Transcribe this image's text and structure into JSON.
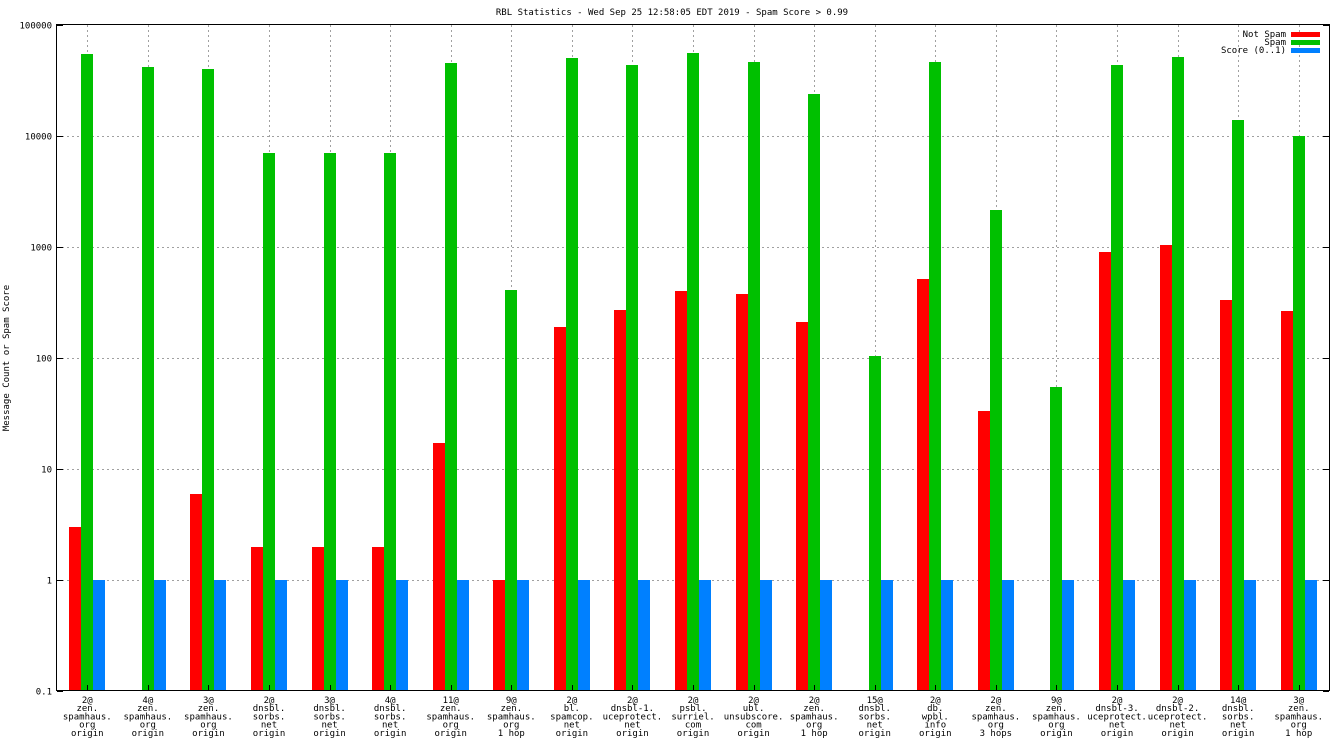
{
  "chart_data": {
    "type": "bar",
    "title": "RBL Statistics - Wed Sep 25 12:58:05 EDT 2019 - Spam Score > 0.99",
    "xlabel": "",
    "ylabel": "Message Count or Spam Score",
    "yscale": "log",
    "ylim": [
      0.1,
      100000
    ],
    "yticks": [
      {
        "value": 0.1,
        "label": "0.1"
      },
      {
        "value": 1,
        "label": "1"
      },
      {
        "value": 10,
        "label": "10"
      },
      {
        "value": 100,
        "label": "100"
      },
      {
        "value": 1000,
        "label": "1000"
      },
      {
        "value": 10000,
        "label": "10000"
      },
      {
        "value": 100000,
        "label": "100000"
      }
    ],
    "grid": true,
    "legend_position": "top-right",
    "categories": [
      [
        "2@",
        "zen.",
        "spamhaus.",
        "org",
        "origin"
      ],
      [
        "4@",
        "zen.",
        "spamhaus.",
        "org",
        "origin"
      ],
      [
        "3@",
        "zen.",
        "spamhaus.",
        "org",
        "origin"
      ],
      [
        "2@",
        "dnsbl.",
        "sorbs.",
        "net",
        "origin"
      ],
      [
        "3@",
        "dnsbl.",
        "sorbs.",
        "net",
        "origin"
      ],
      [
        "4@",
        "dnsbl.",
        "sorbs.",
        "net",
        "origin"
      ],
      [
        "11@",
        "zen.",
        "spamhaus.",
        "org",
        "origin"
      ],
      [
        "9@",
        "zen.",
        "spamhaus.",
        "org",
        "1 hop"
      ],
      [
        "2@",
        "bl.",
        "spamcop.",
        "net",
        "origin"
      ],
      [
        "2@",
        "dnsbl-1.",
        "uceprotect.",
        "net",
        "origin"
      ],
      [
        "2@",
        "psbl.",
        "surriel.",
        "com",
        "origin"
      ],
      [
        "2@",
        "ubl.",
        "unsubscore.",
        "com",
        "origin"
      ],
      [
        "2@",
        "zen.",
        "spamhaus.",
        "org",
        "1 hop"
      ],
      [
        "15@",
        "dnsbl.",
        "sorbs.",
        "net",
        "origin"
      ],
      [
        "2@",
        "db.",
        "wpbl.",
        "info",
        "origin"
      ],
      [
        "2@",
        "zen.",
        "spamhaus.",
        "org",
        "3 hops"
      ],
      [
        "9@",
        "zen.",
        "spamhaus.",
        "org",
        "origin"
      ],
      [
        "2@",
        "dnsbl-3.",
        "uceprotect.",
        "net",
        "origin"
      ],
      [
        "2@",
        "dnsbl-2.",
        "uceprotect.",
        "net",
        "origin"
      ],
      [
        "14@",
        "dnsbl.",
        "sorbs.",
        "net",
        "origin"
      ],
      [
        "3@",
        "zen.",
        "spamhaus.",
        "org",
        "1 hop"
      ]
    ],
    "series": [
      {
        "name": "Not Spam",
        "color": "#ff0000",
        "values": [
          3,
          null,
          6,
          2,
          2,
          2,
          17,
          1,
          190,
          270,
          400,
          380,
          210,
          null,
          510,
          33,
          null,
          900,
          1050,
          330,
          265
        ]
      },
      {
        "name": "Spam",
        "color": "#00c000",
        "values": [
          55000,
          42000,
          40000,
          7100,
          7100,
          7100,
          45000,
          410,
          50000,
          44000,
          56000,
          46000,
          24000,
          105,
          46000,
          2150,
          55,
          44000,
          52000,
          14000,
          10000
        ]
      },
      {
        "name": "Score (0..1)",
        "color": "#0080ff",
        "values": [
          1,
          1,
          1,
          1,
          1,
          1,
          1,
          1,
          1,
          1,
          1,
          1,
          1,
          1,
          1,
          1,
          1,
          1,
          1,
          1,
          1
        ]
      }
    ]
  }
}
